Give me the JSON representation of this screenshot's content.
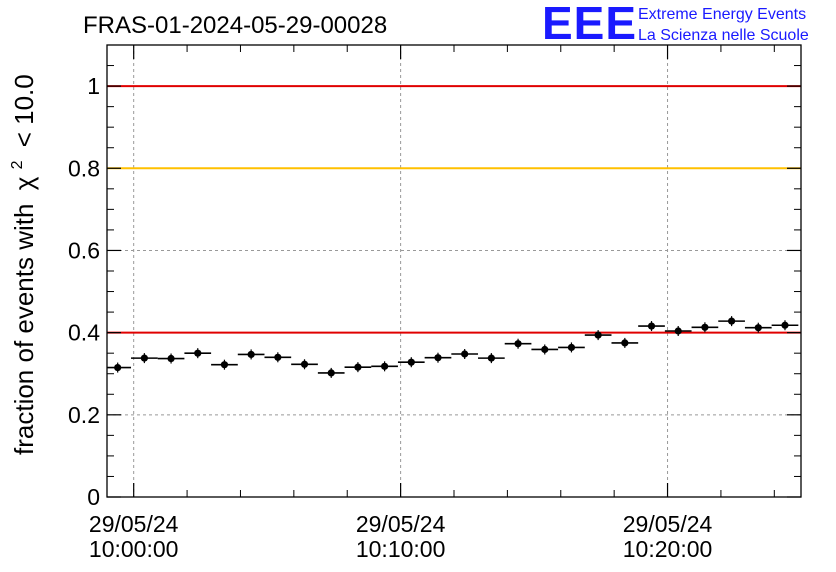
{
  "chart_data": {
    "type": "scatter",
    "title": "FRAS-01-2024-05-29-00028",
    "ylabel": "fraction of events with",
    "ylabel_symbol": "χ",
    "ylabel_exponent": "2",
    "ylabel_suffix": "< 10.0",
    "ylim": [
      0,
      1.1
    ],
    "y_ticks": [
      0,
      0.2,
      0.4,
      0.6,
      0.8,
      1
    ],
    "y_tick_labels": [
      "0",
      "0.2",
      "0.4",
      "0.6",
      "0.8",
      "1"
    ],
    "x_ticks": [
      {
        "minute": 0,
        "date": "29/05/24",
        "time": "10:00:00"
      },
      {
        "minute": 10,
        "date": "29/05/24",
        "time": "10:10:00"
      },
      {
        "minute": 20,
        "date": "29/05/24",
        "time": "10:20:00"
      }
    ],
    "xlim_minutes": [
      -1.0,
      25.0
    ],
    "grid": true,
    "reference_lines": [
      {
        "y": 1.0,
        "color": "#e00000"
      },
      {
        "y": 0.8,
        "color": "#ffc000"
      },
      {
        "y": 0.4,
        "color": "#e00000"
      }
    ],
    "points": [
      {
        "x_minute": -0.6,
        "y": 0.315
      },
      {
        "x_minute": 0.4,
        "y": 0.338
      },
      {
        "x_minute": 1.4,
        "y": 0.337
      },
      {
        "x_minute": 2.4,
        "y": 0.35
      },
      {
        "x_minute": 3.4,
        "y": 0.322
      },
      {
        "x_minute": 4.4,
        "y": 0.347
      },
      {
        "x_minute": 5.4,
        "y": 0.34
      },
      {
        "x_minute": 6.4,
        "y": 0.323
      },
      {
        "x_minute": 7.4,
        "y": 0.302
      },
      {
        "x_minute": 8.4,
        "y": 0.316
      },
      {
        "x_minute": 9.4,
        "y": 0.318
      },
      {
        "x_minute": 10.4,
        "y": 0.328
      },
      {
        "x_minute": 11.4,
        "y": 0.339
      },
      {
        "x_minute": 12.4,
        "y": 0.348
      },
      {
        "x_minute": 13.4,
        "y": 0.338
      },
      {
        "x_minute": 14.4,
        "y": 0.373
      },
      {
        "x_minute": 15.4,
        "y": 0.359
      },
      {
        "x_minute": 16.4,
        "y": 0.364
      },
      {
        "x_minute": 17.4,
        "y": 0.394
      },
      {
        "x_minute": 18.4,
        "y": 0.375
      },
      {
        "x_minute": 19.4,
        "y": 0.416
      },
      {
        "x_minute": 20.4,
        "y": 0.404
      },
      {
        "x_minute": 21.4,
        "y": 0.413
      },
      {
        "x_minute": 22.4,
        "y": 0.428
      },
      {
        "x_minute": 23.4,
        "y": 0.412
      },
      {
        "x_minute": 24.4,
        "y": 0.418
      }
    ],
    "bin_width_minutes": 1.0,
    "marker_color": "#000000"
  },
  "logo": {
    "mark": "EEE",
    "line1": "Extreme Energy Events",
    "line2": "La Scienza nelle Scuole",
    "color": "#1a1aff"
  }
}
